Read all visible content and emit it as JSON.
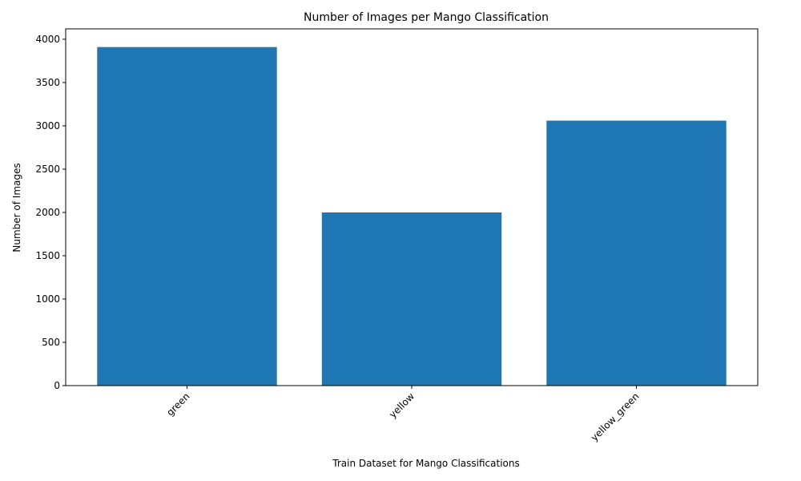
{
  "chart_data": {
    "type": "bar",
    "title": "Number of Images per Mango Classification",
    "xlabel": "Train Dataset for Mango Classifications",
    "ylabel": "Number of Images",
    "categories": [
      "green",
      "yellow",
      "yellow_green"
    ],
    "values": [
      3910,
      2000,
      3060
    ],
    "ylim": [
      0,
      4120
    ],
    "yticks": [
      0,
      500,
      1000,
      1500,
      2000,
      2500,
      3000,
      3500,
      4000
    ],
    "xtick_rotation_deg": 45,
    "grid": false,
    "legend": "none",
    "bar_color": "#1f77b4"
  }
}
